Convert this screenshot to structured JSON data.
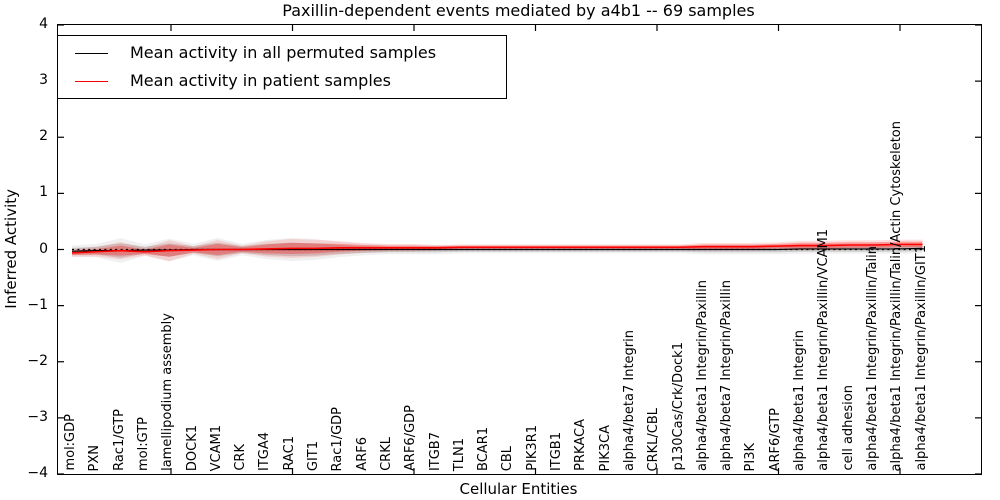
{
  "figure": {
    "title": "Paxillin-dependent events mediated by a4b1 -- 69 samples",
    "xlabel": "Cellular Entities",
    "ylabel": "Inferred Activity"
  },
  "legend": {
    "items": [
      {
        "label": "Mean activity in all permuted samples",
        "color": "#000000"
      },
      {
        "label": "Mean activity in patient samples",
        "color": "#ff0000"
      }
    ]
  },
  "chart_data": {
    "type": "line",
    "title": "Paxillin-dependent events mediated by a4b1 -- 69 samples",
    "xlabel": "Cellular Entities",
    "ylabel": "Inferred Activity",
    "ylim": [
      -4,
      4
    ],
    "grid": false,
    "legend_position": "upper left",
    "zero_line": {
      "style": "dotted",
      "color": "#000000",
      "y": 0
    },
    "y_tick_values": [
      4,
      3,
      2,
      1,
      0,
      -1,
      -2,
      -3,
      -4
    ],
    "y_tick_labels": [
      "4",
      "3",
      "2",
      "1",
      "0",
      "−1",
      "−2",
      "−3",
      "−4"
    ],
    "categories": [
      "mol:GDP",
      "PXN",
      "Rac1/GTP",
      "mol:GTP",
      "lamellipodium assembly",
      "DOCK1",
      "VCAM1",
      "CRK",
      "ITGA4",
      "RAC1",
      "GIT1",
      "Rac1/GDP",
      "ARF6",
      "CRKL",
      "ARF6/GDP",
      "ITGB7",
      "TLN1",
      "BCAR1",
      "CBL",
      "PIK3R1",
      "ITGB1",
      "PRKACA",
      "PIK3CA",
      "alpha4/beta7 Integrin",
      "CRKL/CBL",
      "p130Cas/Crk/Dock1",
      "alpha4/beta1 Integrin/Paxillin",
      "alpha4/beta7 Integrin/Paxillin",
      "PI3K",
      "ARF6/GTP",
      "alpha4/beta1 Integrin",
      "alpha4/beta1 Integrin/Paxillin/VCAM1",
      "cell adhesion",
      "alpha4/beta1 Integrin/Paxillin/Talin",
      "alpha4/beta1 Integrin/Paxillin/Talin/Actin Cytoskeleton",
      "alpha4/beta1 Integrin/Paxillin/GIT1"
    ],
    "series": [
      {
        "name": "Mean activity in all permuted samples",
        "color": "#000000",
        "band_color": "rgba(80,80,80,0.22)",
        "values": [
          -0.03,
          -0.02,
          -0.02,
          -0.01,
          -0.01,
          0,
          0,
          0,
          0,
          0,
          0,
          0,
          0,
          0,
          0,
          0,
          0,
          0,
          0,
          0,
          0,
          0,
          0,
          0,
          0,
          0,
          0,
          0,
          0,
          0,
          0.01,
          0.01,
          0.01,
          0.01,
          0.01,
          0.02
        ],
        "band_halfwidth": [
          0.06,
          0.07,
          0.13,
          0.06,
          0.12,
          0.06,
          0.12,
          0.06,
          0.1,
          0.12,
          0.11,
          0.08,
          0.06,
          0.05,
          0.05,
          0.05,
          0.04,
          0.04,
          0.04,
          0.04,
          0.04,
          0.04,
          0.04,
          0.04,
          0.04,
          0.04,
          0.05,
          0.05,
          0.05,
          0.05,
          0.05,
          0.05,
          0.05,
          0.05,
          0.05,
          0.05
        ]
      },
      {
        "name": "Mean activity in patient samples",
        "color": "#ff0000",
        "band_color": "rgba(255,0,0,0.30)",
        "values": [
          -0.06,
          -0.04,
          -0.02,
          -0.04,
          -0.02,
          -0.01,
          0,
          0,
          0.01,
          0.02,
          0.02,
          0.03,
          0.03,
          0.03,
          0.03,
          0.03,
          0.04,
          0.04,
          0.04,
          0.04,
          0.04,
          0.04,
          0.04,
          0.04,
          0.04,
          0.04,
          0.05,
          0.05,
          0.05,
          0.06,
          0.07,
          0.07,
          0.08,
          0.08,
          0.09,
          0.09
        ],
        "band_halfwidth": [
          0.04,
          0.05,
          0.09,
          0.04,
          0.11,
          0.04,
          0.1,
          0.04,
          0.08,
          0.1,
          0.09,
          0.07,
          0.05,
          0.04,
          0.04,
          0.03,
          0.03,
          0.03,
          0.03,
          0.03,
          0.03,
          0.03,
          0.03,
          0.03,
          0.03,
          0.03,
          0.04,
          0.04,
          0.04,
          0.04,
          0.05,
          0.05,
          0.05,
          0.05,
          0.05,
          0.05
        ]
      }
    ]
  }
}
